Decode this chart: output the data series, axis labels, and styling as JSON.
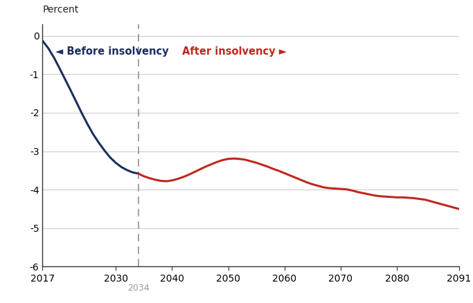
{
  "ylabel_text": "Percent",
  "xlim": [
    2017,
    2091
  ],
  "ylim": [
    -6,
    0.3
  ],
  "yticks": [
    0,
    -1,
    -2,
    -3,
    -4,
    -5,
    -6
  ],
  "insolvency_year": 2034,
  "color_before": "#1b2f5e",
  "color_after": "#c0271e",
  "color_dashed": "#999999",
  "label_before": "◄ Before insolvency",
  "label_after": "After insolvency ►",
  "before_x": [
    2017,
    2018,
    2019,
    2020,
    2021,
    2022,
    2023,
    2024,
    2025,
    2026,
    2027,
    2028,
    2029,
    2030,
    2031,
    2032,
    2033,
    2034
  ],
  "before_y": [
    -0.13,
    -0.32,
    -0.56,
    -0.84,
    -1.13,
    -1.42,
    -1.72,
    -2.02,
    -2.3,
    -2.56,
    -2.78,
    -2.98,
    -3.16,
    -3.3,
    -3.41,
    -3.49,
    -3.55,
    -3.58
  ],
  "after_x": [
    2034,
    2035,
    2036,
    2037,
    2038,
    2039,
    2040,
    2041,
    2042,
    2043,
    2044,
    2045,
    2046,
    2047,
    2048,
    2049,
    2050,
    2051,
    2052,
    2053,
    2054,
    2055,
    2056,
    2057,
    2058,
    2059,
    2060,
    2061,
    2062,
    2063,
    2064,
    2065,
    2066,
    2067,
    2068,
    2069,
    2070,
    2071,
    2072,
    2073,
    2074,
    2075,
    2076,
    2077,
    2078,
    2079,
    2080,
    2081,
    2082,
    2083,
    2084,
    2085,
    2086,
    2087,
    2088,
    2089,
    2090,
    2091
  ],
  "after_y": [
    -3.58,
    -3.65,
    -3.7,
    -3.74,
    -3.77,
    -3.78,
    -3.76,
    -3.72,
    -3.67,
    -3.61,
    -3.54,
    -3.47,
    -3.4,
    -3.34,
    -3.28,
    -3.23,
    -3.2,
    -3.19,
    -3.2,
    -3.22,
    -3.26,
    -3.3,
    -3.35,
    -3.4,
    -3.46,
    -3.51,
    -3.57,
    -3.63,
    -3.69,
    -3.75,
    -3.81,
    -3.86,
    -3.9,
    -3.94,
    -3.96,
    -3.97,
    -3.98,
    -3.99,
    -4.02,
    -4.06,
    -4.09,
    -4.12,
    -4.15,
    -4.17,
    -4.18,
    -4.19,
    -4.2,
    -4.2,
    -4.21,
    -4.22,
    -4.24,
    -4.26,
    -4.3,
    -4.34,
    -4.38,
    -4.42,
    -4.46,
    -4.5
  ],
  "background_color": "#ffffff",
  "grid_color": "#cccccc",
  "spine_color": "#333333"
}
